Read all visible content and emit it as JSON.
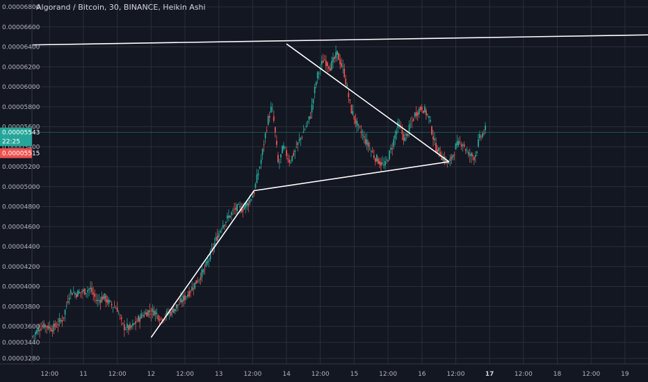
{
  "chart_data": {
    "type": "candlestick",
    "title": "Algorand / Bitcoin, 30, BINANCE, Heikin Ashi",
    "ylim": [
      3.22e-05,
      6.84e-05
    ],
    "y_ticks": [
      "0.00006800",
      "0.00006600",
      "0.00006400",
      "0.00006200",
      "0.00006000",
      "0.00005800",
      "0.00005600",
      "0.00005400",
      "0.00005200",
      "0.00005000",
      "0.00004800",
      "0.00004600",
      "0.00004400",
      "0.00004200",
      "0.00004000",
      "0.00003800",
      "0.00003600",
      "0.00003440",
      "0.00003280"
    ],
    "x_ticks": [
      {
        "label": "12:00",
        "t": 10.5
      },
      {
        "label": "11",
        "t": 11
      },
      {
        "label": "12:00",
        "t": 11.5
      },
      {
        "label": "12",
        "t": 12
      },
      {
        "label": "12:00",
        "t": 12.5
      },
      {
        "label": "13",
        "t": 13
      },
      {
        "label": "12:00",
        "t": 13.5
      },
      {
        "label": "14",
        "t": 14
      },
      {
        "label": "12:00",
        "t": 14.5
      },
      {
        "label": "15",
        "t": 15
      },
      {
        "label": "12:00",
        "t": 15.5
      },
      {
        "label": "16",
        "t": 16
      },
      {
        "label": "12:00",
        "t": 16.5
      },
      {
        "label": "17",
        "t": 17,
        "bold": true
      },
      {
        "label": "12:00",
        "t": 17.5
      },
      {
        "label": "18",
        "t": 18
      },
      {
        "label": "12:00",
        "t": 18.5
      },
      {
        "label": "19",
        "t": 19
      }
    ],
    "xlim": [
      10.24,
      19.34
    ],
    "series": [
      {
        "ohlc_type": "heikin_ashi",
        "close_path": [
          [
            10.25,
            3.5e-05
          ],
          [
            10.4,
            3.62e-05
          ],
          [
            10.55,
            3.58e-05
          ],
          [
            10.7,
            3.68e-05
          ],
          [
            10.8,
            3.95e-05
          ],
          [
            10.9,
            3.93e-05
          ],
          [
            11.0,
            3.95e-05
          ],
          [
            11.1,
            3.98e-05
          ],
          [
            11.2,
            3.85e-05
          ],
          [
            11.3,
            3.9e-05
          ],
          [
            11.4,
            3.82e-05
          ],
          [
            11.5,
            3.78e-05
          ],
          [
            11.58,
            3.6e-05
          ],
          [
            11.7,
            3.58e-05
          ],
          [
            11.85,
            3.7e-05
          ],
          [
            11.95,
            3.75e-05
          ],
          [
            12.05,
            3.75e-05
          ],
          [
            12.15,
            3.68e-05
          ],
          [
            12.3,
            3.75e-05
          ],
          [
            12.45,
            3.85e-05
          ],
          [
            12.6,
            3.98e-05
          ],
          [
            12.8,
            4.18e-05
          ],
          [
            12.95,
            4.45e-05
          ],
          [
            13.05,
            4.62e-05
          ],
          [
            13.15,
            4.7e-05
          ],
          [
            13.25,
            4.78e-05
          ],
          [
            13.35,
            4.78e-05
          ],
          [
            13.45,
            4.85e-05
          ],
          [
            13.52,
            4.95e-05
          ],
          [
            13.62,
            5.25e-05
          ],
          [
            13.72,
            5.65e-05
          ],
          [
            13.78,
            5.8e-05
          ],
          [
            13.82,
            5.62e-05
          ],
          [
            13.88,
            5.2e-05
          ],
          [
            13.95,
            5.4e-05
          ],
          [
            14.05,
            5.25e-05
          ],
          [
            14.15,
            5.4e-05
          ],
          [
            14.25,
            5.55e-05
          ],
          [
            14.35,
            5.7e-05
          ],
          [
            14.45,
            6.1e-05
          ],
          [
            14.55,
            6.28e-05
          ],
          [
            14.65,
            6.2e-05
          ],
          [
            14.75,
            6.33e-05
          ],
          [
            14.85,
            6.15e-05
          ],
          [
            14.95,
            5.78e-05
          ],
          [
            15.05,
            5.6e-05
          ],
          [
            15.15,
            5.48e-05
          ],
          [
            15.3,
            5.3e-05
          ],
          [
            15.45,
            5.2e-05
          ],
          [
            15.55,
            5.38e-05
          ],
          [
            15.65,
            5.62e-05
          ],
          [
            15.75,
            5.47e-05
          ],
          [
            15.9,
            5.73e-05
          ],
          [
            16.0,
            5.8e-05
          ],
          [
            16.1,
            5.7e-05
          ],
          [
            16.2,
            5.4e-05
          ],
          [
            16.3,
            5.3e-05
          ],
          [
            16.4,
            5.22e-05
          ],
          [
            16.5,
            5.4e-05
          ],
          [
            16.6,
            5.45e-05
          ],
          [
            16.68,
            5.32e-05
          ],
          [
            16.78,
            5.3e-05
          ],
          [
            16.85,
            5.48e-05
          ],
          [
            16.95,
            5.58e-05
          ]
        ]
      }
    ],
    "trend_lines": [
      {
        "name": "resistance",
        "from": [
          10.24,
          6.42e-05
        ],
        "to": [
          19.34,
          6.52e-05
        ]
      },
      {
        "name": "triangle-upper",
        "from": [
          14.0,
          6.43e-05
        ],
        "to": [
          16.4,
          5.25e-05
        ]
      },
      {
        "name": "triangle-lower",
        "from": [
          13.52,
          4.96e-05
        ],
        "to": [
          16.4,
          5.25e-05
        ]
      },
      {
        "name": "rising-support",
        "from": [
          12.0,
          3.49e-05
        ],
        "to": [
          13.52,
          4.96e-05
        ]
      }
    ],
    "price_tags": [
      {
        "label": "0.00005543",
        "color": "#26a69a",
        "value": 5.543e-05
      },
      {
        "label": "22:25",
        "color": "#26a69a",
        "value": 5.455e-05
      },
      {
        "label": "0.00005515",
        "color": "#ef5350",
        "value": 5.335e-05
      }
    ],
    "last_price_line": 5.543e-05,
    "colors": {
      "up": "#26a69a",
      "down": "#ef5350",
      "trend": "#ffffff",
      "background": "#131722",
      "grid": "#2a2e39"
    },
    "grid": true
  }
}
